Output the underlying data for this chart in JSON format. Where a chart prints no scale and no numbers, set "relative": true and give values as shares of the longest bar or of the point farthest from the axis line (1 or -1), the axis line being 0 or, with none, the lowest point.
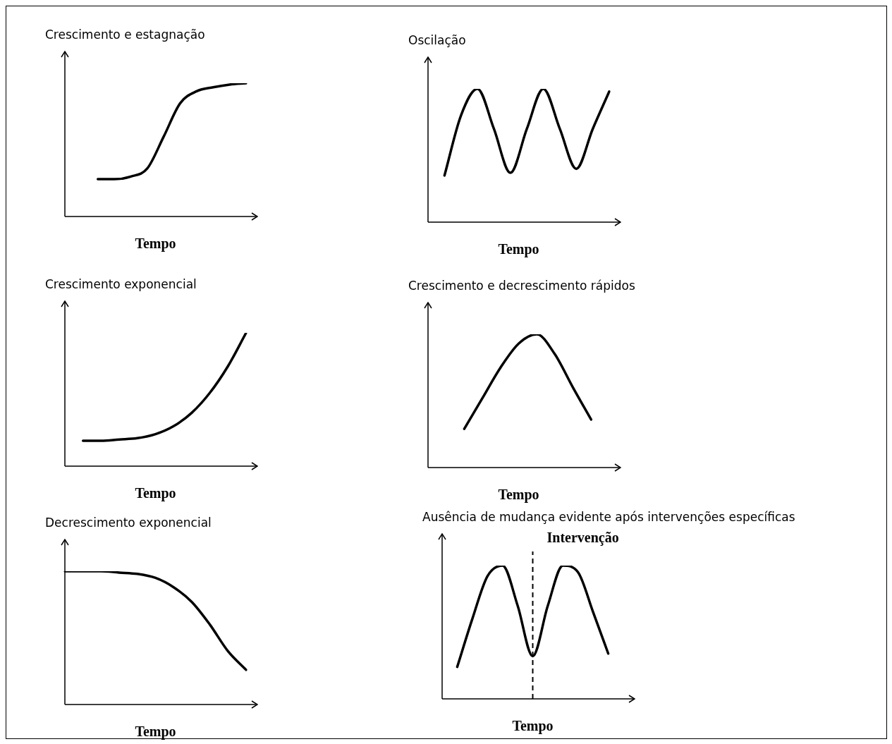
{
  "chart_data": [
    {
      "type": "line",
      "title": "Crescimento e estagnação",
      "xlabel": "Tempo",
      "relative": true,
      "tick_labels": false,
      "categories": [
        null,
        null,
        null,
        null,
        null,
        null,
        null,
        null,
        null,
        null,
        null,
        null
      ],
      "values": [
        null,
        null,
        0.28,
        0.28,
        0.3,
        0.36,
        0.6,
        0.85,
        0.94,
        0.97,
        0.99,
        1
      ],
      "color": "#000000"
    },
    {
      "type": "line",
      "title": "Oscilação",
      "xlabel": "Tempo",
      "relative": true,
      "tick_labels": false,
      "categories": [
        null,
        null,
        null,
        null,
        null,
        null,
        null,
        null,
        null,
        null,
        null,
        null
      ],
      "values": [
        null,
        0.35,
        0.8,
        1,
        0.7,
        0.37,
        0.7,
        1,
        0.7,
        0.4,
        0.7,
        0.98
      ],
      "color": "#000000"
    },
    {
      "type": "line",
      "title": "Crescimento exponencial",
      "xlabel": "Tempo",
      "relative": true,
      "tick_labels": false,
      "categories": [
        null,
        null,
        null,
        null,
        null,
        null,
        null,
        null,
        null,
        null,
        null
      ],
      "values": [
        null,
        0.19,
        0.19,
        0.2,
        0.21,
        0.24,
        0.3,
        0.4,
        0.55,
        0.75,
        1
      ],
      "color": "#000000"
    },
    {
      "type": "line",
      "title": "Crescimento e decrescimento rápidos",
      "xlabel": "Tempo",
      "relative": true,
      "tick_labels": false,
      "categories": [
        null,
        null,
        null,
        null,
        null,
        null,
        null,
        null,
        null,
        null,
        null
      ],
      "values": [
        null,
        null,
        0.29,
        0.52,
        0.75,
        0.93,
        1,
        0.85,
        0.6,
        0.36,
        null
      ],
      "color": "#000000"
    },
    {
      "type": "line",
      "title": "Decrescimento exponencial",
      "xlabel": "Tempo",
      "relative": true,
      "tick_labels": false,
      "categories": [
        null,
        null,
        null,
        null,
        null,
        null,
        null,
        null,
        null,
        null,
        null
      ],
      "values": [
        1,
        1,
        1,
        0.99,
        0.98,
        0.95,
        0.88,
        0.77,
        0.6,
        0.4,
        0.26
      ],
      "color": "#000000"
    },
    {
      "type": "line",
      "title": "Ausência de mudança  evidente após intervenções específicas",
      "xlabel": "Tempo",
      "relative": true,
      "tick_labels": false,
      "categories": [
        null,
        null,
        null,
        null,
        null,
        null,
        null,
        null,
        null,
        null,
        null,
        null,
        null
      ],
      "values": [
        null,
        0.24,
        0.6,
        0.92,
        1,
        0.7,
        0.32,
        0.7,
        1,
        0.95,
        0.65,
        0.34,
        null
      ],
      "color": "#000000",
      "annotations": [
        "Intervenção"
      ]
    }
  ]
}
